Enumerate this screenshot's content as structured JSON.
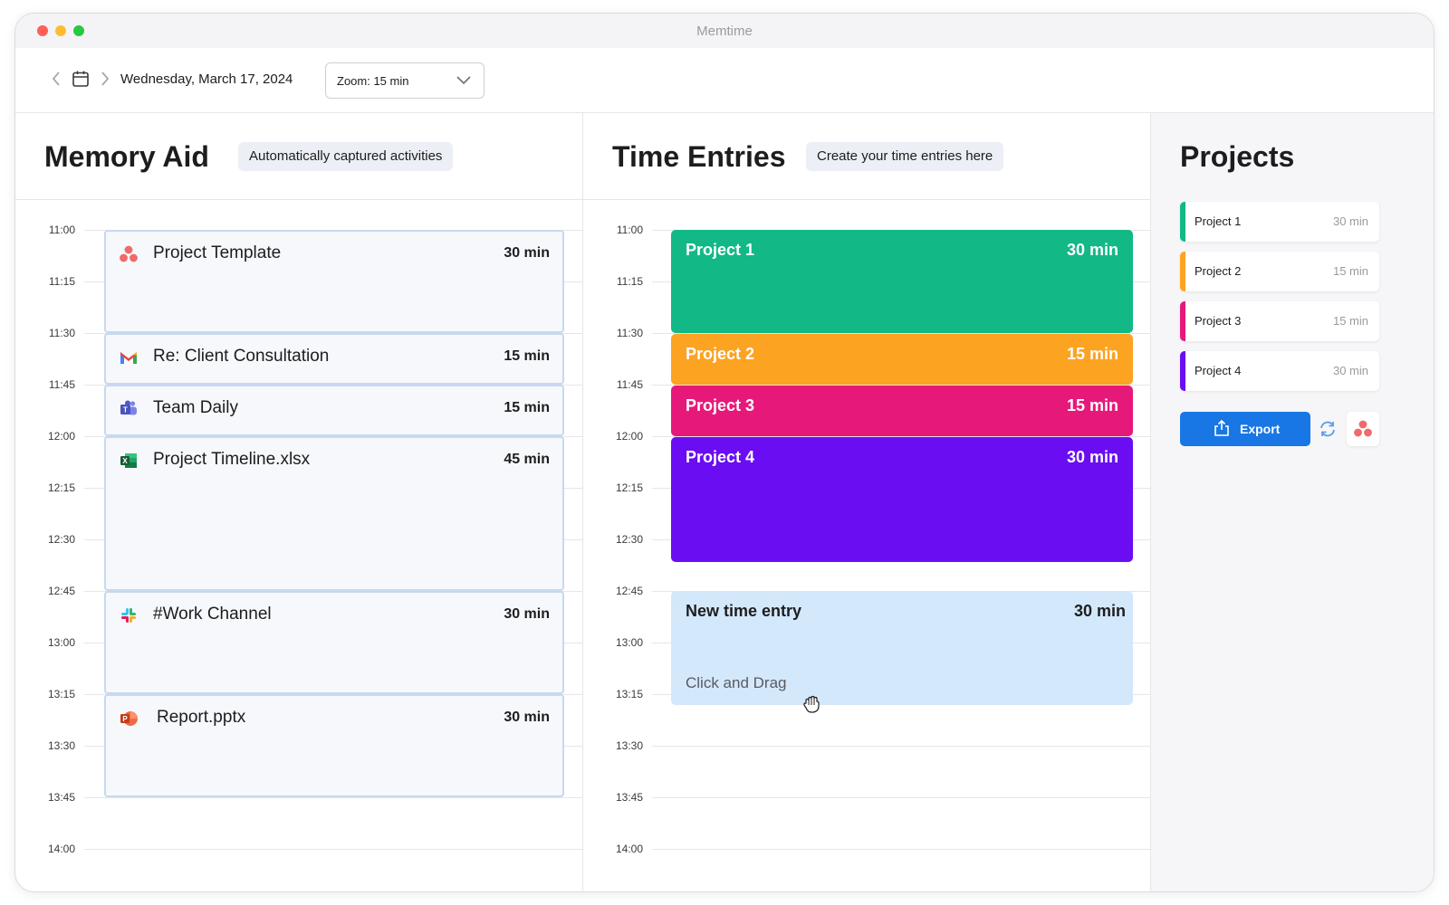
{
  "app": {
    "title": "Memtime"
  },
  "toolbar": {
    "date": "Wednesday, March 17, 2024",
    "zoom": "Zoom: 15 min"
  },
  "memory": {
    "title": "Memory Aid",
    "badge": "Automatically captured activities",
    "times": [
      "11:00",
      "11:15",
      "11:30",
      "11:45",
      "12:00",
      "12:15",
      "12:30",
      "12:45",
      "13:00",
      "13:15",
      "13:30",
      "13:45",
      "14:00"
    ],
    "activities": [
      {
        "name": "Project Template",
        "duration": "30 min",
        "icon": "asana-icon"
      },
      {
        "name": "Re: Client Consultation",
        "duration": "15 min",
        "icon": "gmail-icon"
      },
      {
        "name": "Team Daily",
        "duration": "15 min",
        "icon": "teams-icon"
      },
      {
        "name": "Project Timeline.xlsx",
        "duration": "45 min",
        "icon": "excel-icon"
      },
      {
        "name": "#Work Channel",
        "duration": "30 min",
        "icon": "slack-icon"
      },
      {
        "name": "Report.pptx",
        "duration": "30 min",
        "icon": "powerpoint-icon"
      }
    ]
  },
  "time_entries": {
    "title": "Time Entries",
    "badge": "Create your time entries here",
    "times": [
      "11:00",
      "11:15",
      "11:30",
      "11:45",
      "12:00",
      "12:15",
      "12:30",
      "12:45",
      "13:00",
      "13:15",
      "13:30",
      "13:45",
      "14:00"
    ],
    "entries": [
      {
        "name": "Project 1",
        "duration": "30 min",
        "color": "#12b886"
      },
      {
        "name": "Project 2",
        "duration": "15 min",
        "color": "#fca321"
      },
      {
        "name": "Project 3",
        "duration": "15 min",
        "color": "#e6197a"
      },
      {
        "name": "Project 4",
        "duration": "30 min",
        "color": "#6a0df2"
      }
    ],
    "new_entry": {
      "name": "New time entry",
      "duration": "30 min",
      "hint": "Click and Drag"
    }
  },
  "projects": {
    "title": "Projects",
    "items": [
      {
        "name": "Project 1",
        "duration": "30 min",
        "color": "#12b886"
      },
      {
        "name": "Project 2",
        "duration": "15 min",
        "color": "#fca321"
      },
      {
        "name": "Project 3",
        "duration": "15 min",
        "color": "#e6197a"
      },
      {
        "name": "Project 4",
        "duration": "30 min",
        "color": "#6a0df2"
      }
    ],
    "export_label": "Export"
  }
}
